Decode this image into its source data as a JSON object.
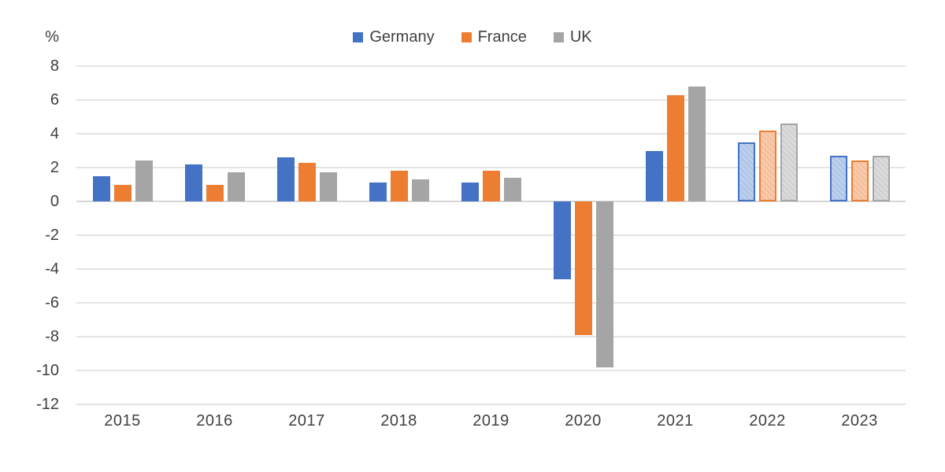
{
  "chart": {
    "unit_label": "%",
    "legend_items": [
      "Germany",
      "France",
      "UK"
    ]
  },
  "chart_data": {
    "type": "bar",
    "title": "",
    "xlabel": "",
    "ylabel": "%",
    "categories": [
      "2015",
      "2016",
      "2017",
      "2018",
      "2019",
      "2020",
      "2021",
      "2022",
      "2023"
    ],
    "series": [
      {
        "name": "Germany",
        "color": "#4472C4",
        "light_color": "#BDD0EC",
        "stripe_color": "#ADC4E6",
        "values": [
          1.5,
          2.2,
          2.6,
          1.1,
          1.1,
          -4.6,
          3.0,
          3.5,
          2.7
        ]
      },
      {
        "name": "France",
        "color": "#ED7D31",
        "light_color": "#F8CBAD",
        "stripe_color": "#F5BC97",
        "values": [
          1.0,
          1.0,
          2.3,
          1.8,
          1.8,
          -7.9,
          6.3,
          4.2,
          2.4
        ]
      },
      {
        "name": "UK",
        "color": "#A5A5A5",
        "light_color": "#DBDBDB",
        "stripe_color": "#CFCFCF",
        "values": [
          2.4,
          1.7,
          1.7,
          1.3,
          1.4,
          -9.8,
          6.8,
          4.6,
          2.7
        ]
      }
    ],
    "forecast_categories": [
      "2022",
      "2023"
    ],
    "yticks": [
      8,
      6,
      4,
      2,
      0,
      -2,
      -4,
      -6,
      -8,
      -10,
      -12
    ],
    "ylim": [
      -12,
      8
    ],
    "grid": true,
    "legend_position": "top-center"
  }
}
